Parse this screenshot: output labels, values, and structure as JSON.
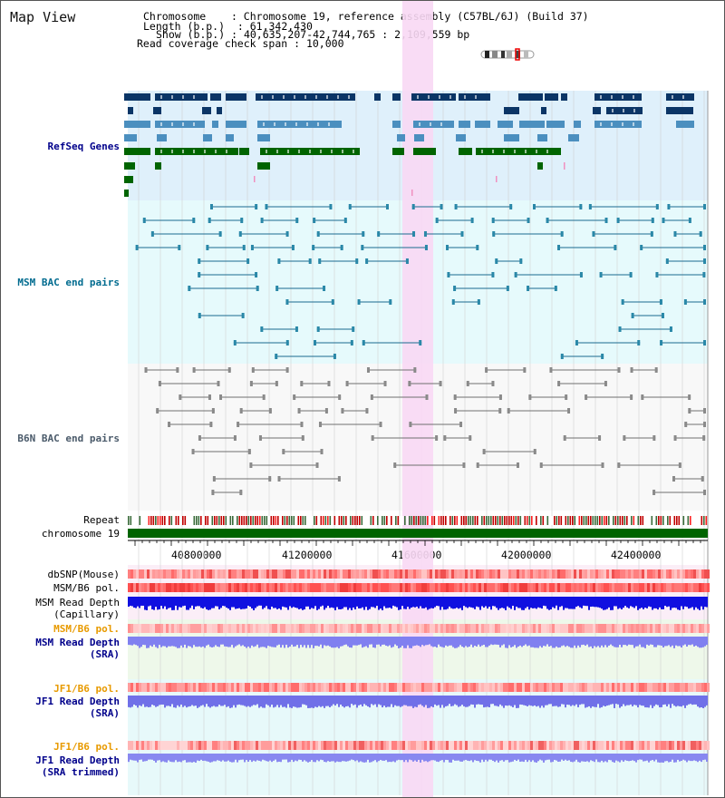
{
  "view_title": "Map View",
  "header": {
    "chromosome_label": "Chromosome",
    "chromosome_value": "Chromosome 19, reference assembly (C57BL/6J) (Build 37)",
    "length_label": "Length (b.p.)",
    "length_value": "61,342,430",
    "show_label": "Show (b.p.)",
    "show_value": "40,635,207-42,744,765 : 2,109,559 bp",
    "coverage_label": "Read coverage check span",
    "coverage_value": "10,000"
  },
  "tracks": {
    "refseq": "RefSeq Genes",
    "msm_bac": "MSM BAC end pairs",
    "b6n_bac": "B6N BAC end pairs",
    "repeat": "Repeat",
    "chromosome": "chromosome 19",
    "dbsnp": "dbSNP(Mouse)",
    "msm_b6_pol_1": "MSM/B6 pol.",
    "msm_read_depth_cap_1": "MSM Read Depth",
    "msm_read_depth_cap_2": "(Capillary)",
    "msm_b6_pol_2": "MSM/B6 pol.",
    "msm_read_depth_sra_1": "MSM Read Depth",
    "msm_read_depth_sra_2": "(SRA)",
    "jf1_b6_pol_1": "JF1/B6 pol.",
    "jf1_read_depth_sra_1": "JF1 Read Depth",
    "jf1_read_depth_sra_2": "(SRA)",
    "jf1_b6_pol_2": "JF1/B6 pol.",
    "jf1_read_depth_trim_1": "JF1 Read Depth",
    "jf1_read_depth_trim_2": "(SRA trimmed)"
  },
  "axis": {
    "ticks": [
      "40800000",
      "41200000",
      "41600000",
      "42000000",
      "42400000"
    ]
  },
  "colors": {
    "refseq_bg": "#dff0fb",
    "msm_bg": "#e6fafc",
    "highlight": "#f8d8f4",
    "dark_blue": "#0b3566",
    "mid_blue": "#4b8fbf",
    "green": "#006400",
    "label_blue": "#00008b",
    "label_teal": "#006b8f",
    "label_orange": "#e89a00",
    "chrom_green": "#006400"
  }
}
